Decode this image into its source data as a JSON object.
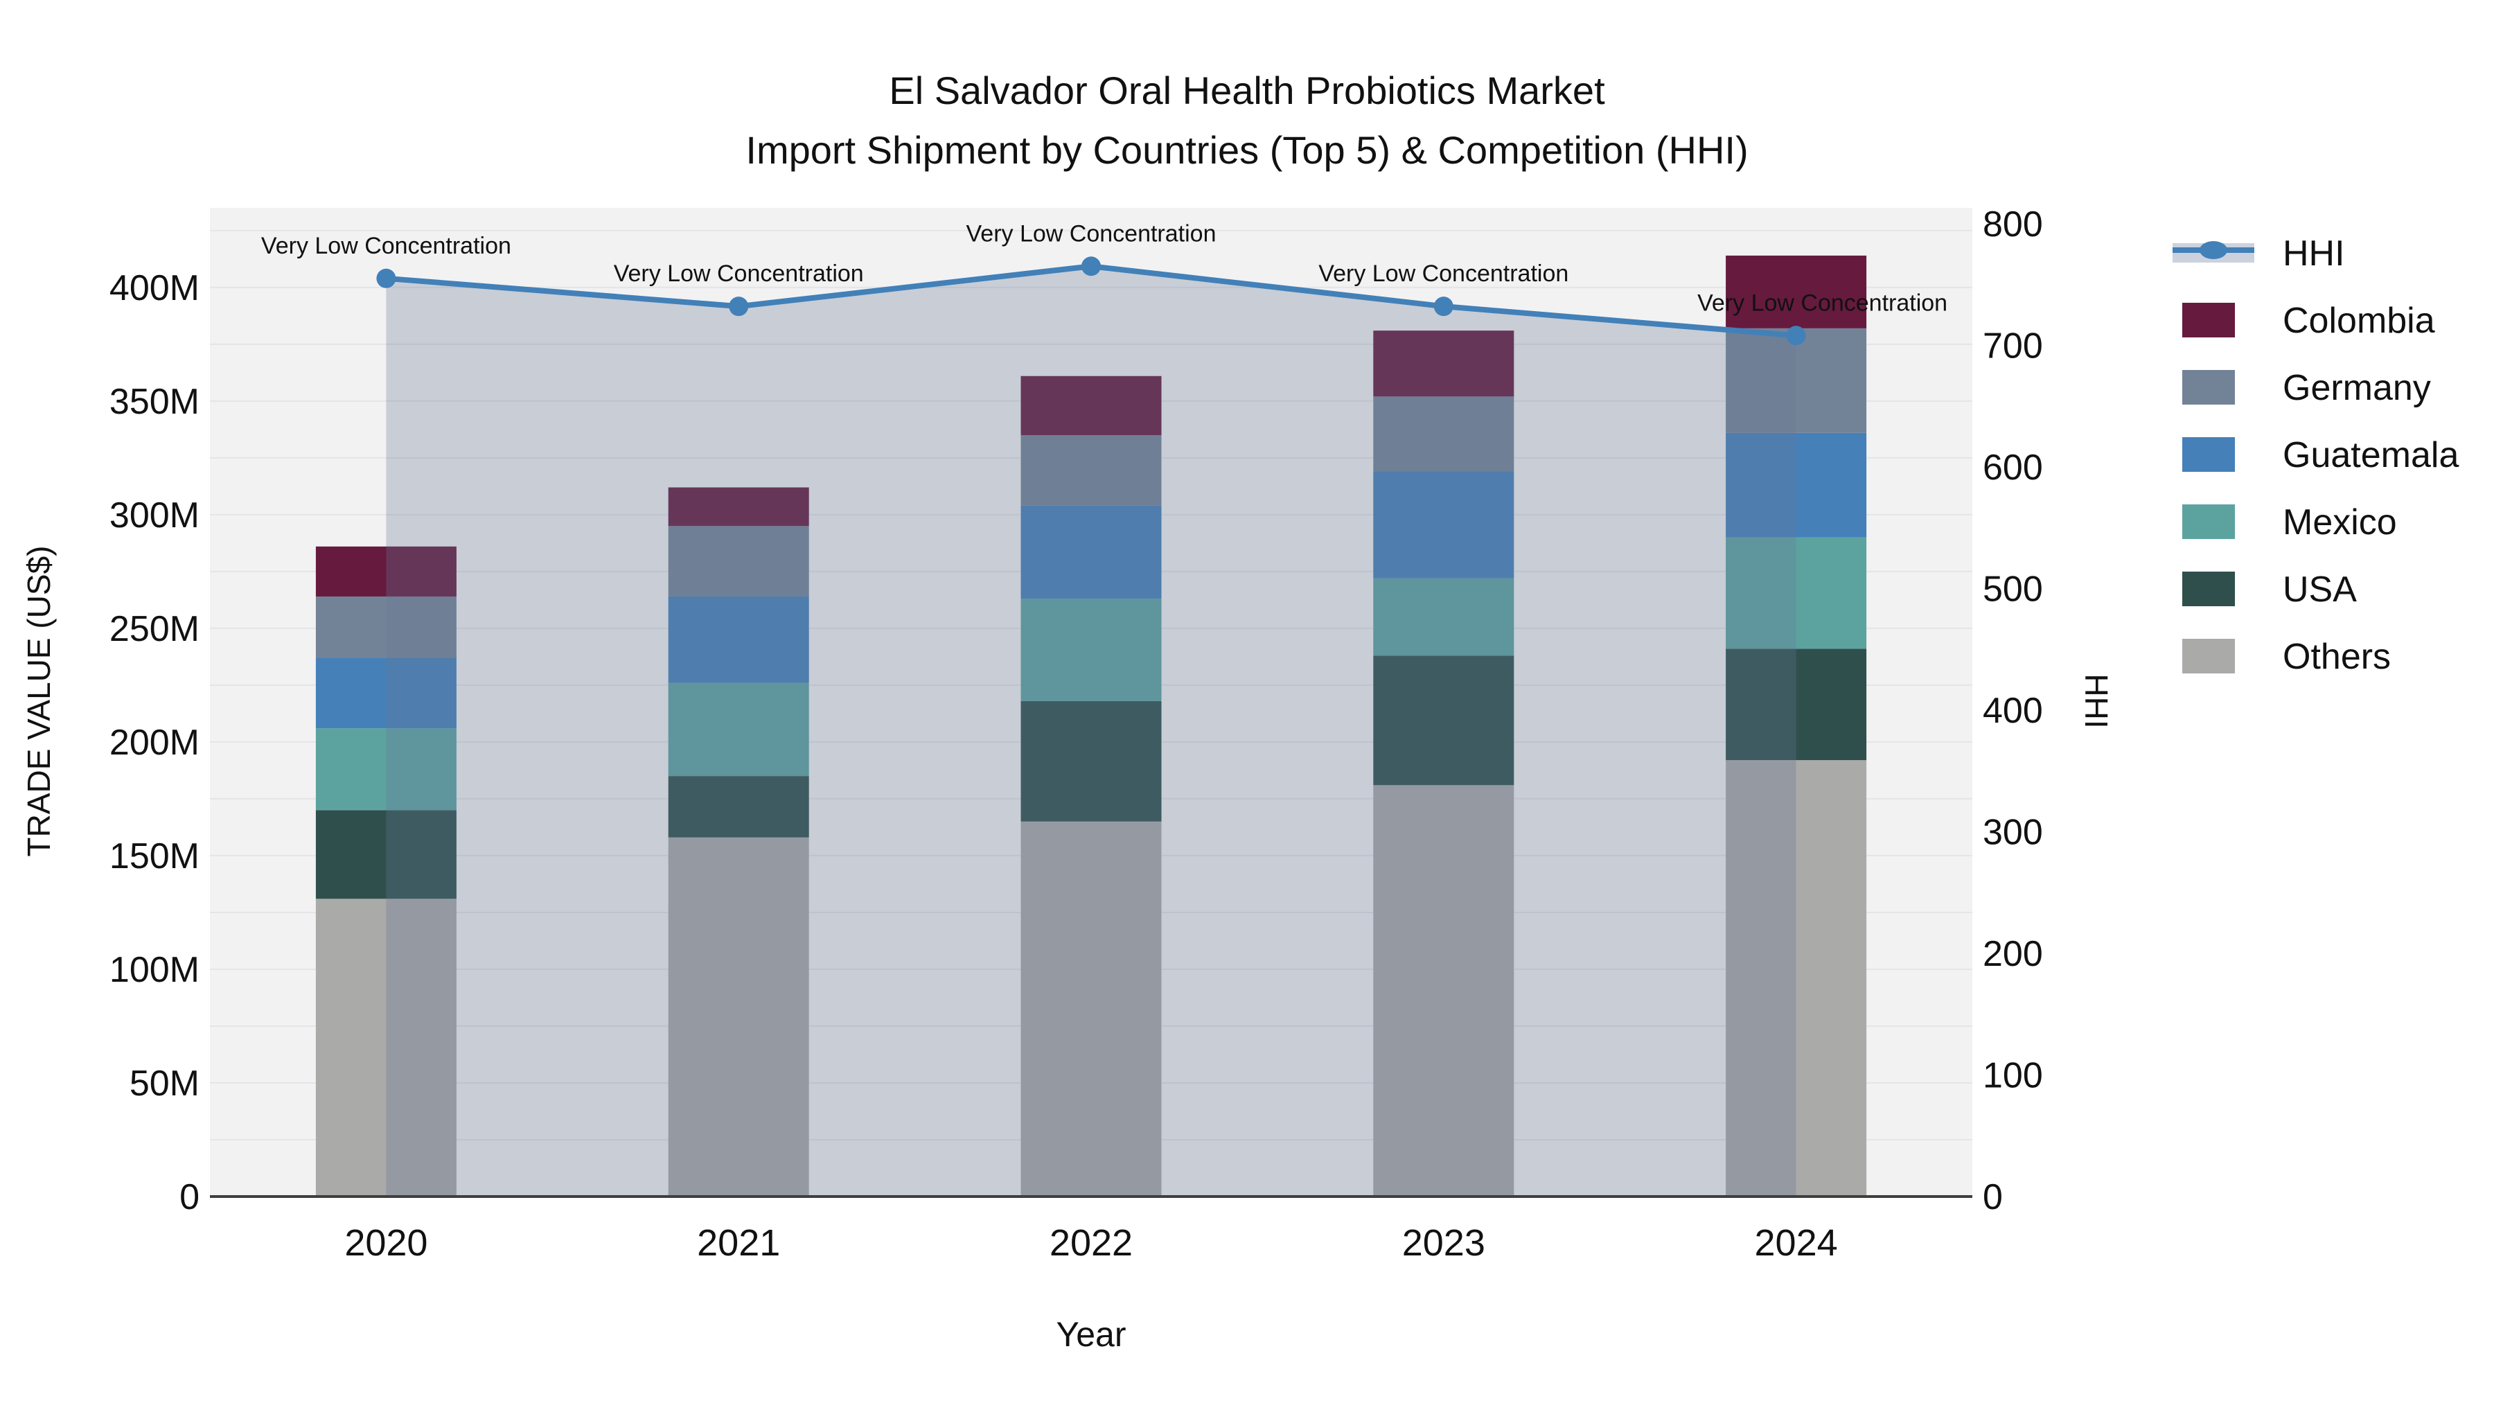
{
  "title": {
    "line1": "El Salvador Oral Health Probiotics Market",
    "line2": "Import Shipment by Countries (Top 5) & Competition (HHI)"
  },
  "chart_data": {
    "type": "bar",
    "subtype": "stacked-bar-with-line-overlay",
    "unit": "M US$ (trade value), index points (HHI)",
    "categories": [
      "2020",
      "2021",
      "2022",
      "2023",
      "2024"
    ],
    "series": [
      {
        "name": "Others",
        "color": "#AAAAA8",
        "values": [
          131,
          158,
          165,
          181,
          192
        ]
      },
      {
        "name": "USA",
        "color": "#2F4F4C",
        "values": [
          39,
          27,
          53,
          57,
          49
        ]
      },
      {
        "name": "Mexico",
        "color": "#5CA3A0",
        "values": [
          36,
          41,
          45,
          34,
          49
        ]
      },
      {
        "name": "Guatemala",
        "color": "#4580B8",
        "values": [
          31,
          38,
          41,
          47,
          46
        ]
      },
      {
        "name": "Germany",
        "color": "#738397",
        "values": [
          27,
          31,
          31,
          33,
          46
        ]
      },
      {
        "name": "Colombia",
        "color": "#661A3E",
        "values": [
          22,
          17,
          26,
          29,
          32
        ]
      }
    ],
    "stacked_totals": [
      286,
      312,
      361,
      381,
      414
    ],
    "line_series": {
      "name": "HHI",
      "axis": "right",
      "color": "#4280B8",
      "area_fill": "rgba(103,120,148,0.30)",
      "values": [
        755,
        732,
        765,
        732,
        708
      ]
    },
    "annotations": [
      "Very Low Concentration",
      "Very Low Concentration",
      "Very Low Concentration",
      "Very Low Concentration",
      "Very Low Concentration"
    ],
    "xlabel": "Year",
    "ylabel_left": "TRADE VALUE (US$)",
    "ylabel_right": "HHI",
    "yticks_left_labels": [
      "0",
      "50M",
      "100M",
      "150M",
      "200M",
      "250M",
      "300M",
      "350M",
      "400M"
    ],
    "yticks_left_values": [
      0,
      50,
      100,
      150,
      200,
      250,
      300,
      350,
      400
    ],
    "yticks_right_values": [
      0,
      100,
      200,
      300,
      400,
      500,
      600,
      700,
      800
    ],
    "ylim_left": [
      0,
      435
    ],
    "ylim_right": [
      0,
      813
    ],
    "grid": "on",
    "grid_step_left": 25,
    "legend_position": "right",
    "plot_bg": "#F2F2F3",
    "grid_color": "#E3E5E9",
    "axisline_color": "#3F3F3F"
  },
  "legend": {
    "items": [
      {
        "label": "HHI",
        "type": "line",
        "color": "#4280B8",
        "band": "#CBD2DE"
      },
      {
        "label": "Colombia",
        "type": "swatch",
        "color": "#661A3E"
      },
      {
        "label": "Germany",
        "type": "swatch",
        "color": "#738397"
      },
      {
        "label": "Guatemala",
        "type": "swatch",
        "color": "#4580B8"
      },
      {
        "label": "Mexico",
        "type": "swatch",
        "color": "#5CA3A0"
      },
      {
        "label": "USA",
        "type": "swatch",
        "color": "#2F4F4C"
      },
      {
        "label": "Others",
        "type": "swatch",
        "color": "#AAAAA8"
      }
    ]
  }
}
